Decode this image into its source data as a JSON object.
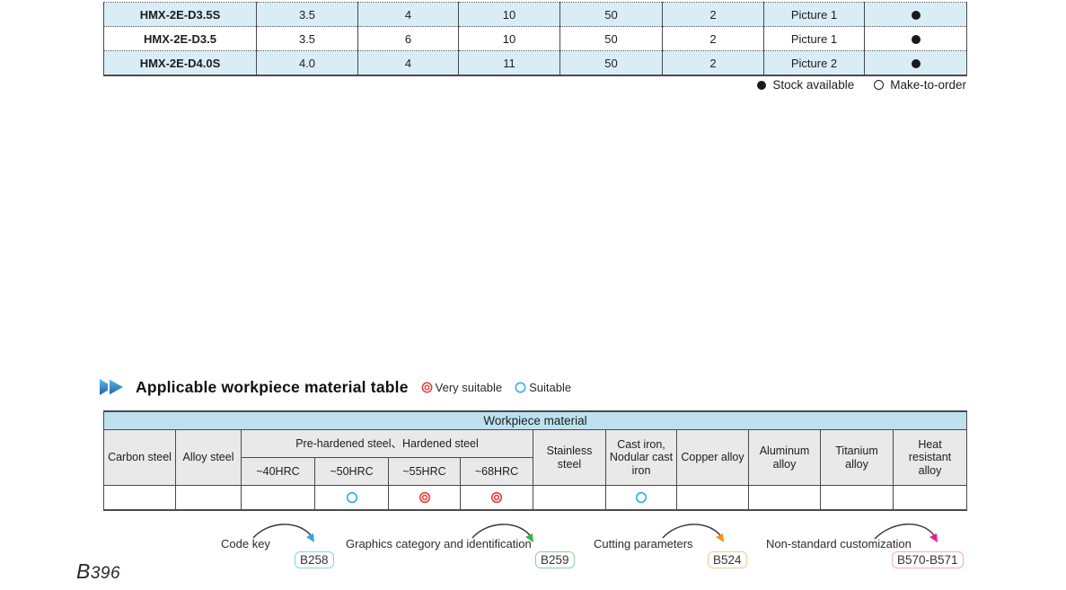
{
  "page_number": "B396",
  "spec_table": {
    "rows": [
      {
        "model": "HMX-2E-D3.5S",
        "values": [
          "3.5",
          "4",
          "10",
          "50",
          "2",
          "Picture 1"
        ],
        "stock": "available"
      },
      {
        "model": "HMX-2E-D3.5",
        "values": [
          "3.5",
          "6",
          "10",
          "50",
          "2",
          "Picture 1"
        ],
        "stock": "available"
      },
      {
        "model": "HMX-2E-D4.0S",
        "values": [
          "4.0",
          "4",
          "11",
          "50",
          "2",
          "Picture 2"
        ],
        "stock": "available"
      }
    ]
  },
  "stock_legend": {
    "available": "Stock available",
    "make_to_order": "Make-to-order"
  },
  "material_section": {
    "title": "Applicable workpiece material table",
    "legend": {
      "very_suitable": "Very suitable",
      "suitable": "Suitable"
    },
    "table": {
      "banner": "Workpiece material",
      "headers": {
        "carbon": "Carbon steel",
        "alloy": "Alloy steel",
        "group": "Pre-hardened steel、Hardened steel",
        "hrc": [
          "~40HRC",
          "~50HRC",
          "~55HRC",
          "~68HRC"
        ],
        "stainless": "Stainless steel",
        "cast_iron": "Cast iron, Nodular cast iron",
        "copper": "Copper alloy",
        "aluminum": "Aluminum alloy",
        "titanium": "Titanium alloy",
        "heat": "Heat resistant alloy"
      },
      "marks": [
        "",
        "",
        "",
        "suitable",
        "very-suitable",
        "very-suitable",
        "",
        "suitable",
        "",
        "",
        "",
        ""
      ]
    }
  },
  "references": [
    {
      "label": "Code key",
      "page": "B258"
    },
    {
      "label": "Graphics category and identification",
      "page": "B259"
    },
    {
      "label": "Cutting parameters",
      "page": "B524"
    },
    {
      "label": "Non-standard customization",
      "page": "B570-B571"
    }
  ],
  "colors": {
    "row_highlight": "#d9edf6",
    "banner_blue": "#bde1ef",
    "header_gray": "#e9e9e9",
    "very_suitable_red": "#e8403a",
    "suitable_blue": "#29b1e6",
    "arrow_blue": "#29abe2",
    "arrow_green": "#3cb54a",
    "arrow_orange": "#f7941e",
    "arrow_pink": "#ec1a8d",
    "ref_box_blue": "#7fd4f0",
    "ref_box_green": "#8fd09a",
    "ref_box_orange": "#f8c88e",
    "ref_box_pink": "#f5a8cb"
  }
}
